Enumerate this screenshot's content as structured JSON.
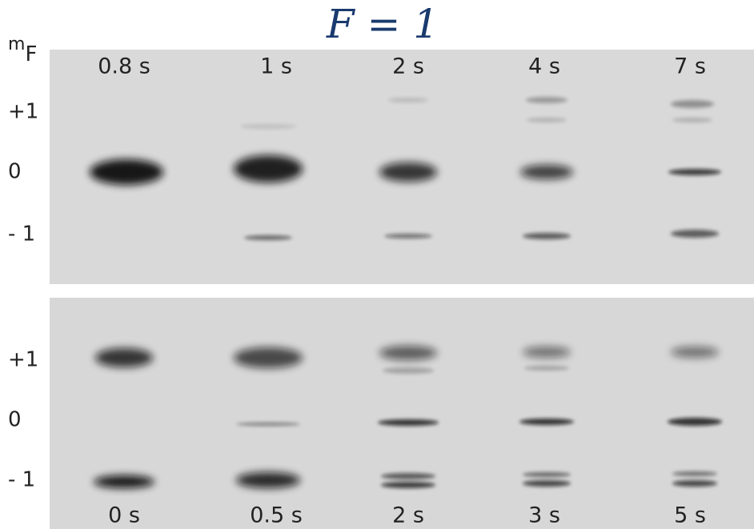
{
  "title": "F = 1",
  "axis_label": {
    "symbol": "m",
    "subscript": "F"
  },
  "top_panel": {
    "times": [
      "0.8 s",
      "1 s",
      "2 s",
      "4 s",
      "7 s"
    ],
    "rows": [
      "+1",
      "0",
      "- 1"
    ]
  },
  "bottom_panel": {
    "times": [
      "0 s",
      "0.5 s",
      "2 s",
      "3 s",
      "5 s"
    ],
    "rows": [
      "+1",
      "0",
      "- 1"
    ]
  }
}
